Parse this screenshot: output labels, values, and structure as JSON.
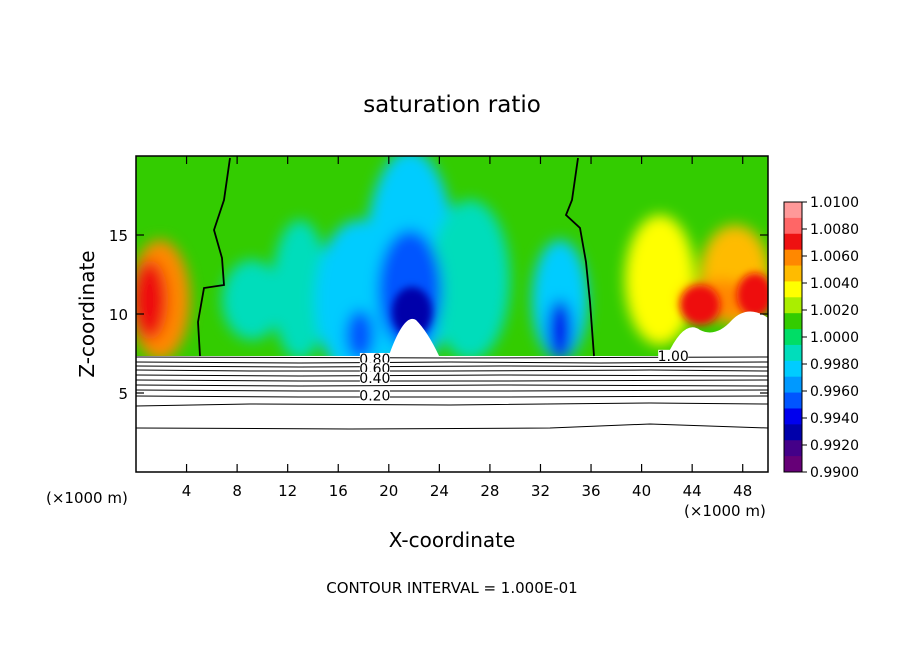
{
  "chart_data": {
    "type": "heatmap",
    "title": "saturation ratio",
    "xlabel": "X-coordinate",
    "ylabel": "Z-coordinate",
    "x_unit_left": "(×1000 m)",
    "x_unit_right": "(×1000 m)",
    "xlim": [
      0,
      50
    ],
    "ylim": [
      0,
      20
    ],
    "x_ticks": [
      4,
      8,
      12,
      16,
      20,
      24,
      28,
      32,
      36,
      40,
      44,
      48
    ],
    "y_ticks": [
      5,
      10,
      15
    ],
    "colorbar": {
      "min": 0.99,
      "max": 1.01,
      "labels": [
        "1.0100",
        "1.0080",
        "1.0060",
        "1.0040",
        "1.0020",
        "1.0000",
        "0.9980",
        "0.9960",
        "0.9940",
        "0.9920",
        "0.9900"
      ],
      "colors": [
        "#ff9999",
        "#ff6666",
        "#ee1111",
        "#ff8800",
        "#ffbb00",
        "#ffff00",
        "#aaee00",
        "#33cc00",
        "#00dd66",
        "#00ddbb",
        "#00ccff",
        "#0099ff",
        "#0055ff",
        "#0000ee",
        "#0000aa",
        "#440088",
        "#660077"
      ]
    },
    "contours": [
      {
        "label": "1.00",
        "label_x": 42.5,
        "label_z": 7.1
      },
      {
        "label": "0.80",
        "label_x": 18.9,
        "label_z": 6.9
      },
      {
        "label": "0.60",
        "label_x": 18.9,
        "label_z": 6.3
      },
      {
        "label": "0.40",
        "label_x": 18.9,
        "label_z": 5.7
      },
      {
        "label": "0.20",
        "label_x": 18.9,
        "label_z": 4.6
      }
    ],
    "footer": "CONTOUR INTERVAL = 1.000E-01"
  }
}
